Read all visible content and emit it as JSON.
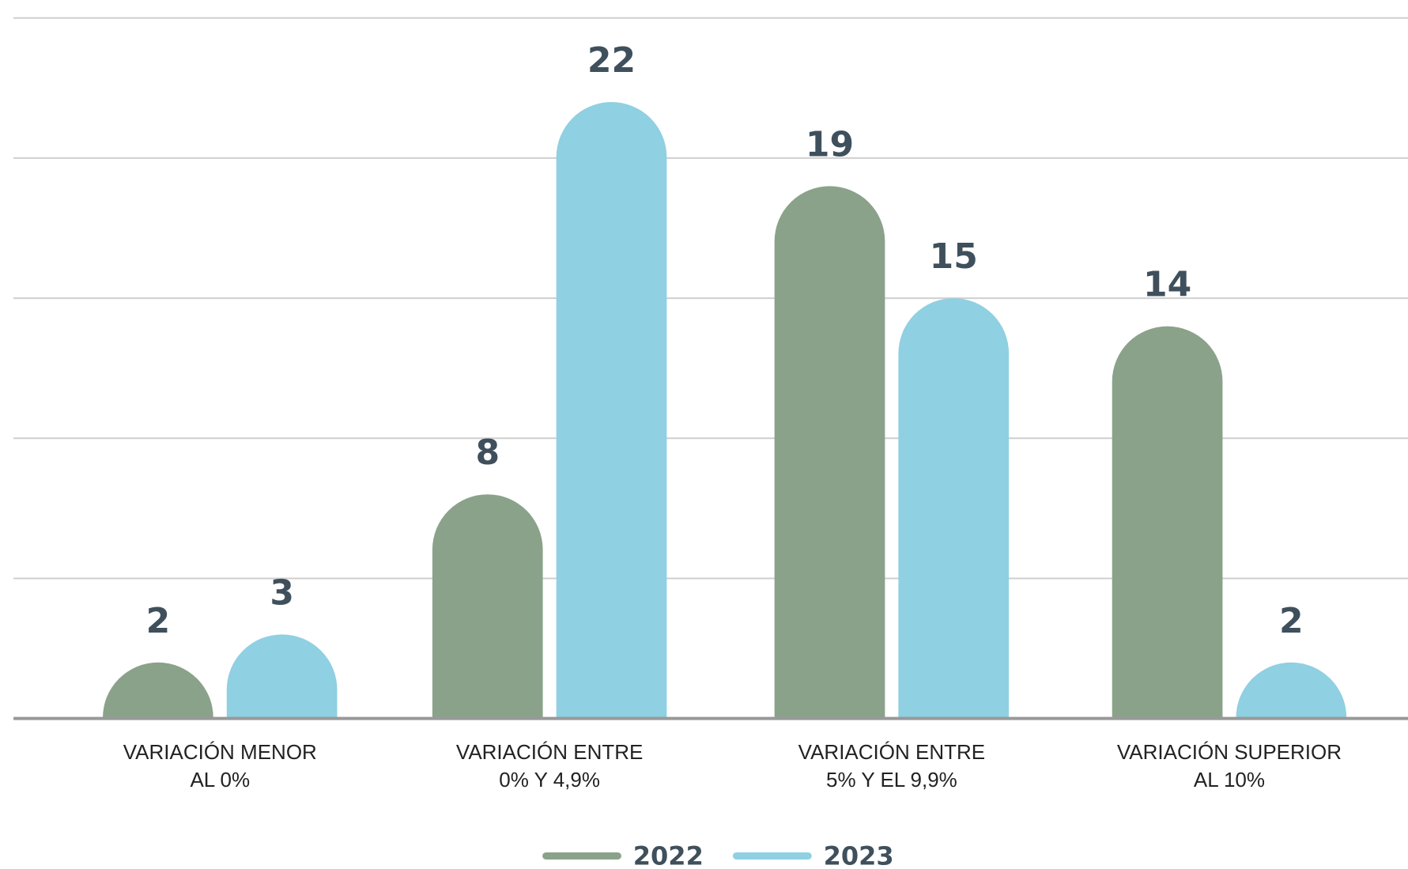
{
  "chart_data": {
    "type": "bar",
    "categories": [
      [
        "VARIACIÓN MENOR",
        "AL 0%"
      ],
      [
        "VARIACIÓN ENTRE",
        "0% Y 4,9%"
      ],
      [
        "VARIACIÓN ENTRE",
        "5% Y EL 9,9%"
      ],
      [
        "VARIACIÓN SUPERIOR",
        "AL 10%"
      ]
    ],
    "series": [
      {
        "name": "2022",
        "color": "#8aa28a",
        "values": [
          2,
          8,
          19,
          14
        ]
      },
      {
        "name": "2023",
        "color": "#8fd0e2",
        "values": [
          3,
          22,
          15,
          2
        ]
      }
    ],
    "ylim": [
      0,
      25
    ],
    "yticks": [
      0,
      5,
      10,
      15,
      20,
      25
    ],
    "grid": true,
    "legend": "bottom"
  }
}
